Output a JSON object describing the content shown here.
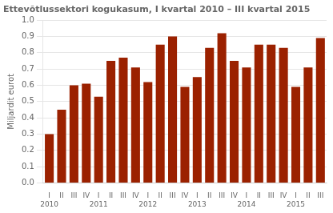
{
  "chart_data": {
    "type": "bar",
    "title": "Ettevõtlussektori kogukasum, I kvartal 2010 – III kvartal 2015",
    "ylabel": "Miljardit eurot",
    "categories": [
      [
        "I",
        "2010"
      ],
      [
        "II",
        null
      ],
      [
        "III",
        null
      ],
      [
        "IV",
        null
      ],
      [
        "I",
        "2011"
      ],
      [
        "II",
        null
      ],
      [
        "III",
        null
      ],
      [
        "IV",
        null
      ],
      [
        "I",
        "2012"
      ],
      [
        "II",
        null
      ],
      [
        "III",
        null
      ],
      [
        "IV",
        null
      ],
      [
        "I",
        "2013"
      ],
      [
        "II",
        null
      ],
      [
        "III",
        null
      ],
      [
        "IV",
        null
      ],
      [
        "I",
        "2014"
      ],
      [
        "II",
        null
      ],
      [
        "III",
        null
      ],
      [
        "IV",
        null
      ],
      [
        "I",
        "2015"
      ],
      [
        "II",
        null
      ],
      [
        "III",
        null
      ]
    ],
    "values": [
      0.3,
      0.45,
      0.6,
      0.61,
      0.53,
      0.75,
      0.77,
      0.71,
      0.62,
      0.85,
      0.9,
      0.59,
      0.65,
      0.83,
      0.92,
      0.75,
      0.71,
      0.85,
      0.85,
      0.83,
      0.59,
      0.71,
      0.89
    ],
    "color": "#9B2100",
    "ylim": [
      0.0,
      1.0
    ],
    "yticks": [
      {
        "value": 0,
        "label": "0.0"
      },
      0.1,
      0.2,
      0.3,
      0.4,
      0.5,
      0.6,
      0.7,
      0.8,
      0.9,
      {
        "value": 1,
        "label": "1.0"
      }
    ],
    "grid": true
  }
}
